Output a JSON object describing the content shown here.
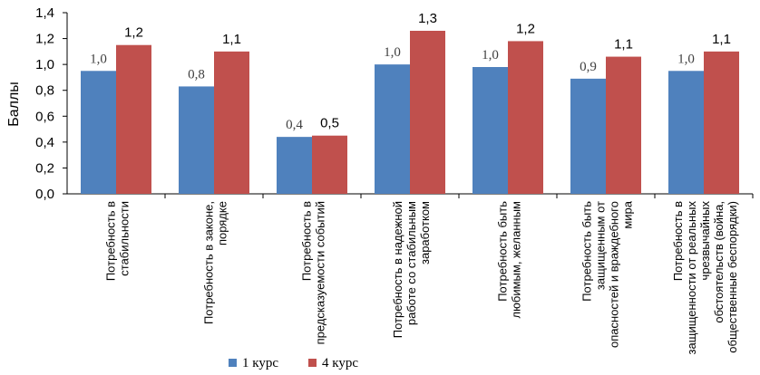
{
  "chart_data": {
    "type": "bar",
    "ylabel": "Баллы",
    "ylim": [
      0,
      1.4
    ],
    "yticks": [
      "0,0",
      "0,2",
      "0,4",
      "0,6",
      "0,8",
      "1,0",
      "1,2",
      "1,4"
    ],
    "grid": false,
    "legend_position": "bottom-left",
    "categories": [
      [
        "Потребность в",
        "стабильности"
      ],
      [
        "Потребность в законе,",
        "порядке"
      ],
      [
        "Потребность в",
        "предсказуемости событий"
      ],
      [
        "Потребность в надежной",
        "работе со стабильным",
        "заработком"
      ],
      [
        "Потребность быть",
        "любимым, желанным"
      ],
      [
        "Потребность быть",
        "защищенным  от",
        "опасностей и враждебного",
        "мира"
      ],
      [
        "Потребность в",
        "защищенности  от реальных",
        "чрезвычайных",
        "обстоятельств (война,",
        "общественные беспорядки)"
      ]
    ],
    "series": [
      {
        "name": "1 курс",
        "color": "#4F81BD",
        "values": [
          0.95,
          0.83,
          0.44,
          1.0,
          0.98,
          0.89,
          0.95
        ],
        "labels": [
          "1,0",
          "0,8",
          "0,4",
          "1,0",
          "1,0",
          "0,9",
          "1,0"
        ]
      },
      {
        "name": "4 курс",
        "color": "#C0504D",
        "values": [
          1.15,
          1.1,
          0.45,
          1.26,
          1.18,
          1.06,
          1.1
        ],
        "labels": [
          "1,2",
          "1,1",
          "0,5",
          "1,3",
          "1,2",
          "1,1",
          "1,1"
        ]
      }
    ]
  }
}
